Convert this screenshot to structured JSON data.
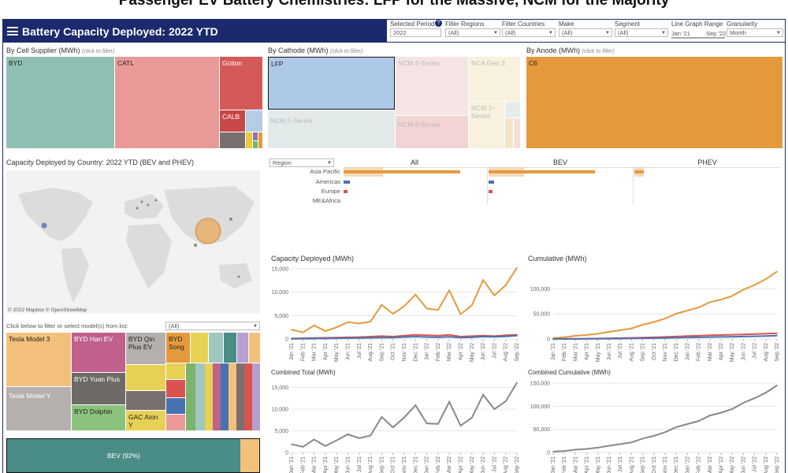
{
  "page_title": "Passenger EV Battery Chemistries: LFP for the Massive, NCM for the Majority",
  "header": {
    "title": "Battery Capacity Deployed: 2022 YTD"
  },
  "filters": [
    {
      "label": "Selected Period",
      "value": "2022"
    },
    {
      "label": "Filter Regions",
      "value": "(All)"
    },
    {
      "label": "Filter Countries",
      "value": "(All)"
    },
    {
      "label": "Make",
      "value": "(All)"
    },
    {
      "label": "Segment",
      "value": "(All)"
    },
    {
      "label": "Line Graph Range",
      "value_start": "Jan '21",
      "value_end": "Sep '22"
    },
    {
      "label": "Granularity",
      "value": "Month"
    }
  ],
  "supplier": {
    "title": "By Cell Supplier (MWh)",
    "hint": "(click to filter)",
    "cells": [
      "BYD",
      "CATL",
      "Gotion",
      "CALB"
    ]
  },
  "cathode": {
    "title": "By Cathode (MWh)",
    "hint": "(click to filter)",
    "cells": [
      "LFP",
      "NCM 8-Series",
      "NCA Gen 3",
      "NCM 5-Series",
      "NCM 6-Series",
      "NCM 7-Series"
    ]
  },
  "anode": {
    "title": "By Anode (MWh)",
    "hint": "(click to filter)",
    "cells": [
      "C6"
    ]
  },
  "map": {
    "title": "Capacity Deployed by Country: 2022 YTD (BEV and PHEV)",
    "attribution": "© 2022 Mapbox © OpenStreetMap"
  },
  "region_bars": {
    "dropdown": "Region",
    "columns": [
      "All",
      "BEV",
      "PHEV"
    ],
    "regions": [
      "Asia Pacific",
      "Americas",
      "Europe",
      "ME&Africa"
    ]
  },
  "models": {
    "hint": "Click below to filter or select model(s) from list:",
    "dropdown": "(All)",
    "cells": [
      "Tesla Model 3",
      "BYD Han EV",
      "BYD Qin Plus EV",
      "BYD Song",
      "BYD Yuan Plus",
      "Tesla Model Y",
      "BYD Dolphin",
      "GAC Aion Y"
    ]
  },
  "powertrain": {
    "label": "BEV (92%)"
  },
  "colors": {
    "orange": "#e49a3c",
    "red": "#d9534f",
    "blue": "#4a72b0",
    "grey": "#888888"
  },
  "chart_data": [
    {
      "type": "line",
      "title": "Capacity Deployed (MWh)",
      "categories": [
        "Jan '21",
        "Feb '21",
        "Mar '21",
        "Apr '21",
        "May '21",
        "Jun '21",
        "Jul '21",
        "Aug '21",
        "Sep '21",
        "Oct '21",
        "Nov '21",
        "Dec '21",
        "Jan '22",
        "Feb '22",
        "Mar '22",
        "Apr '22",
        "May '22",
        "Jun '22",
        "Jul '22",
        "Aug '22",
        "Sep '22"
      ],
      "ylim": [
        0,
        15000
      ],
      "yticks": [
        "0",
        "5,000",
        "10,000",
        "15,000"
      ],
      "series": [
        {
          "color": "orange",
          "values": [
            2000,
            1400,
            2900,
            1700,
            2500,
            3600,
            3300,
            3700,
            7300,
            5400,
            7000,
            9500,
            6500,
            6200,
            10400,
            5300,
            7200,
            12600,
            9300,
            11500,
            15200
          ]
        },
        {
          "color": "red",
          "values": [
            100,
            150,
            200,
            250,
            300,
            350,
            400,
            500,
            600,
            500,
            700,
            900,
            800,
            700,
            900,
            500,
            600,
            700,
            600,
            800,
            900
          ]
        },
        {
          "color": "blue",
          "values": [
            50,
            60,
            80,
            100,
            150,
            180,
            200,
            250,
            300,
            300,
            400,
            500,
            400,
            350,
            450,
            300,
            350,
            500,
            450,
            550,
            700
          ]
        }
      ]
    },
    {
      "type": "line",
      "title": "Cumulative (MWh)",
      "categories": [
        "Jan '21",
        "Feb '21",
        "Mar '21",
        "Apr '21",
        "May '21",
        "Jun '21",
        "Jul '21",
        "Aug '21",
        "Sep '21",
        "Oct '21",
        "Nov '21",
        "Dec '21",
        "Jan '22",
        "Feb '22",
        "Mar '22",
        "Apr '22",
        "May '22",
        "Jun '22",
        "Jul '22",
        "Aug '22",
        "Sep '22"
      ],
      "ylim": [
        0,
        140000
      ],
      "yticks": [
        "0",
        "50,000",
        "100,000"
      ],
      "series": [
        {
          "color": "orange",
          "values": [
            2000,
            3400,
            6300,
            8000,
            10500,
            14100,
            17400,
            21100,
            28400,
            33800,
            40800,
            50300,
            56800,
            63000,
            73400,
            78700,
            85900,
            98500,
            107800,
            119300,
            134500
          ]
        },
        {
          "color": "red",
          "values": [
            100,
            250,
            450,
            700,
            1000,
            1350,
            1750,
            2250,
            2850,
            3350,
            4050,
            4950,
            5750,
            6450,
            7350,
            7850,
            8450,
            9150,
            9750,
            10550,
            11450
          ]
        },
        {
          "color": "blue",
          "values": [
            50,
            110,
            190,
            290,
            440,
            620,
            820,
            1070,
            1370,
            1670,
            2070,
            2570,
            2970,
            3320,
            3770,
            4070,
            4420,
            4920,
            5370,
            5920,
            6620
          ]
        }
      ]
    },
    {
      "type": "line",
      "title": "Combined Total (MWh)",
      "categories": [
        "Jan '21",
        "Feb '21",
        "Mar '21",
        "Apr '21",
        "May '21",
        "Jun '21",
        "Jul '21",
        "Aug '21",
        "Sep '21",
        "Oct '21",
        "Nov '21",
        "Dec '21",
        "Jan '22",
        "Feb '22",
        "Mar '22",
        "Apr '22",
        "May '22",
        "Jun '22",
        "Jul '22",
        "Aug '22",
        "Sep '22"
      ],
      "ylim": [
        0,
        16000
      ],
      "yticks": [
        "0",
        "5,000",
        "10,000",
        "15,000"
      ],
      "series": [
        {
          "color": "grey",
          "values": [
            1900,
            1300,
            3000,
            1500,
            2800,
            4200,
            3300,
            3900,
            8200,
            5800,
            8100,
            10900,
            6700,
            6600,
            11700,
            6200,
            8000,
            13300,
            10000,
            11800,
            16100
          ]
        }
      ]
    },
    {
      "type": "line",
      "title": "Combined Cumulative (MWh)",
      "categories": [
        "Jan '21",
        "Feb '21",
        "Mar '21",
        "Apr '21",
        "May '21",
        "Jun '21",
        "Jul '21",
        "Aug '21",
        "Sep '21",
        "Oct '21",
        "Nov '21",
        "Dec '21",
        "Jan '22",
        "Feb '22",
        "Mar '22",
        "Apr '22",
        "May '22",
        "Jun '22",
        "Jul '22",
        "Aug '22",
        "Sep '22"
      ],
      "ylim": [
        0,
        150000
      ],
      "yticks": [
        "0",
        "50,000",
        "100,000",
        "150,000"
      ],
      "series": [
        {
          "color": "grey",
          "values": [
            1900,
            3200,
            6200,
            7700,
            10500,
            14700,
            18000,
            21900,
            30100,
            35900,
            44000,
            54900,
            61600,
            68200,
            79900,
            86100,
            94100,
            107400,
            117400,
            129200,
            145300
          ]
        }
      ]
    }
  ]
}
